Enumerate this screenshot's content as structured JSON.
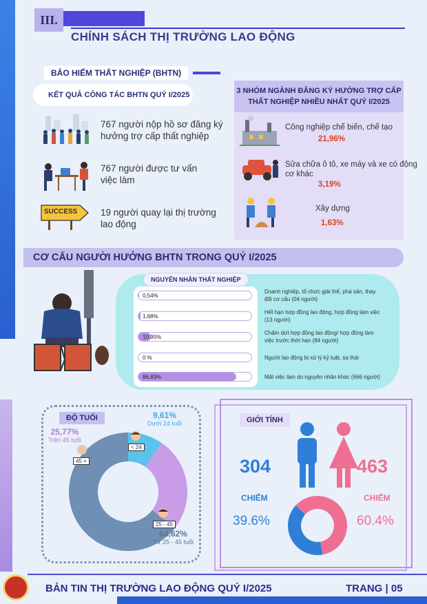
{
  "section": {
    "number": "III.",
    "title": "CHÍNH SÁCH THỊ TRƯỜNG LAO ĐỘNG"
  },
  "bhtn": {
    "label": "BẢO HIỂM THẤT NGHIỆP (BHTN)",
    "result_title": "KẾT QUẢ CÔNG TÁC BHTN QUÝ I/2025",
    "stats": [
      {
        "line1": "767 người nộp hồ sơ đăng ký",
        "line2": "hưởng trợ cấp thất nghiệp"
      },
      {
        "line1": "767 người  được tư vấn",
        "line2": "việc làm"
      },
      {
        "line1": "19 người quay lại thị trường",
        "line2": "lao động"
      }
    ],
    "success_sign": "SUCCESS"
  },
  "groups": {
    "title_line1": "3 NHÓM NGÀNH ĐĂNG KÝ HƯỞNG TRỢ CẤP",
    "title_line2": "THẤT NGHIỆP NHIỀU NHẤT QUÝ I/2025",
    "items": [
      {
        "name": "Công nghiệp chế biến, chế tạo",
        "name2": "",
        "value": "21,96%"
      },
      {
        "name": "Sửa chữa ô tô, xe máy và xe có động",
        "name2": "cơ khác",
        "value": "3,19%"
      },
      {
        "name": "Xây dựng",
        "name2": "",
        "value": "1,63%"
      }
    ]
  },
  "structure": {
    "title": "CƠ CẤU NGƯỜI HƯỞNG BHTN TRONG QUÝ I/2025",
    "causes_title": "NGUYÊN NHÂN THẤT NGHIỆP",
    "causes": [
      {
        "label": "0,54%",
        "value": 0.54,
        "line1": "Doanh nghiệp, tổ chức giải thể, phá sản, thay",
        "line2": "đổi cơ cấu (04 người)"
      },
      {
        "label": "1,68%",
        "value": 1.68,
        "line1": "Hết hạn hợp đồng lao động, hợp đồng làm việc",
        "line2": "(13 người)"
      },
      {
        "label": "10,95%",
        "value": 10.95,
        "line1": "Chấm dứt hợp đồng lao động/ hợp đồng làm",
        "line2": "việc trước thời hạn (84 người)"
      },
      {
        "label": "0 %",
        "value": 0,
        "line1": "Người lao động bị xử lý kỷ luật, sa thải",
        "line2": ""
      },
      {
        "label": "86,83%",
        "value": 86.83,
        "line1": "Mất việc làm do nguyên nhân khác (666 người)",
        "line2": ""
      }
    ]
  },
  "age": {
    "title": "ĐỘ TUỔI",
    "chart_data": {
      "type": "pie",
      "categories": [
        "Dưới 24 tuổi",
        "Trên 45 tuổi",
        "Từ 25 - 45 tuổi"
      ],
      "values": [
        9.61,
        25.77,
        64.62
      ],
      "colors": [
        "#5bc2ec",
        "#c89ce6",
        "#6f8fb4"
      ]
    },
    "labels": [
      {
        "pct": "9,61%",
        "desc": "Dưới 24 tuổi",
        "badge": "< 24"
      },
      {
        "pct": "25,77%",
        "desc": "Trên 45 tuổi",
        "badge": "45 +"
      },
      {
        "pct": "64,62%",
        "desc": "Từ 25 - 45 tuổi",
        "badge": "25 - 45"
      }
    ]
  },
  "gender": {
    "title": "GIỚI TÍNH",
    "male_count": "304",
    "female_count": "463",
    "male_label": "CHIẾM",
    "female_label": "CHIẾM",
    "male_pct": "39.6%",
    "female_pct": "60.4%",
    "chart_data": {
      "type": "pie",
      "categories": [
        "Nam",
        "Nữ"
      ],
      "values": [
        39.6,
        60.4
      ],
      "colors": [
        "#2f7fd6",
        "#ef6f93"
      ]
    },
    "male_color": "#2f7fd6",
    "female_color": "#ef6f93"
  },
  "footer": {
    "title": "BẢN TIN THỊ TRƯỜNG LAO ĐỘNG QUÝ I/2025",
    "page": "TRANG | 05"
  }
}
